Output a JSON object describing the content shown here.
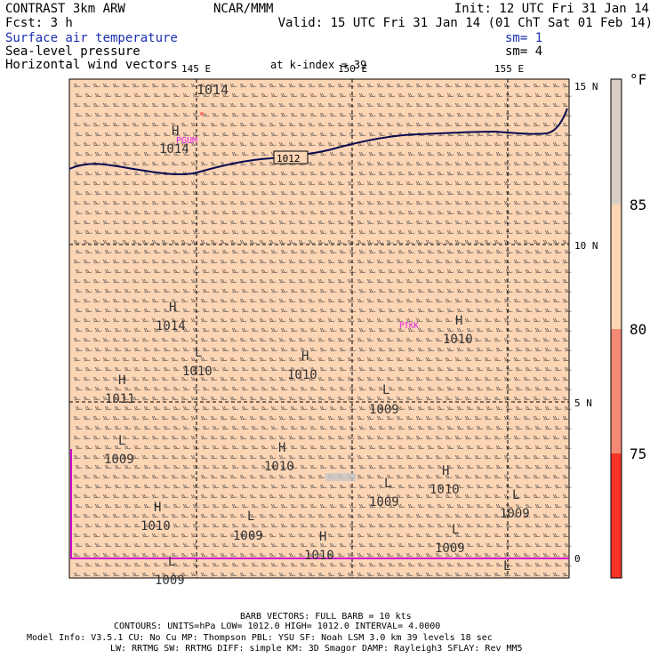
{
  "header": {
    "left": [
      {
        "text": "CONTRAST  3km ARW",
        "color": "#000000"
      },
      {
        "text": "Fcst:     3 h",
        "color": "#000000"
      },
      {
        "text": "Surface air temperature",
        "color": "#1d2fb0"
      },
      {
        "text": "Sea-level pressure",
        "color": "#000000"
      },
      {
        "text": "Horizontal wind vectors",
        "color": "#000000"
      }
    ],
    "center": "NCAR/MMM",
    "init": "Init: 12 UTC Fri 31 Jan 14",
    "valid": "Valid: 15 UTC Fri 31 Jan 14 (01 ChT Sat 01 Feb 14)",
    "sm1": "sm= 1",
    "sm2": "sm= 4",
    "kindex": "at k-index =  39"
  },
  "map": {
    "fill_color": "#fcd5b5",
    "lon_labels": [
      "145 E",
      "150 E",
      "155 E"
    ],
    "lat_labels": [
      "15 N",
      "10 N",
      "5 N",
      "0"
    ],
    "station_labels": [
      "PGUM",
      "PTKK"
    ],
    "contour_labels": [
      "1014",
      "1012"
    ],
    "pressure_centers": [
      {
        "type": "H",
        "value": "1014"
      },
      {
        "type": "H",
        "value": "1014"
      },
      {
        "type": "L",
        "value": "1010"
      },
      {
        "type": "H",
        "value": "1010"
      },
      {
        "type": "H",
        "value": "1011"
      },
      {
        "type": "L",
        "value": "1009"
      },
      {
        "type": "L",
        "value": "1009"
      },
      {
        "type": "H",
        "value": "1010"
      },
      {
        "type": "L",
        "value": "1009"
      },
      {
        "type": "H",
        "value": "1010"
      },
      {
        "type": "L",
        "value": "1009"
      },
      {
        "type": "H",
        "value": "1010"
      },
      {
        "type": "L",
        "value": "1009"
      },
      {
        "type": "H",
        "value": "1010"
      },
      {
        "type": "H",
        "value": "1010"
      },
      {
        "type": "L",
        "value": "1009"
      },
      {
        "type": "L",
        "value": "1009"
      },
      {
        "type": "L",
        "value": "1009"
      },
      {
        "type": "L",
        "value": "1009"
      },
      {
        "type": "H",
        "value": ""
      }
    ]
  },
  "colorbar": {
    "unit": "°F",
    "labels": [
      "85",
      "80",
      "75"
    ],
    "colors": [
      "#d8cec4",
      "#fcd5b5",
      "#f48a74",
      "#f43424"
    ]
  },
  "footer": {
    "barb": "BARB VECTORS:  FULL BARB = 10 kts",
    "contours": "CONTOURS:  UNITS=hPa  LOW=  1012.0        HIGH=  1012.0     INTERVAL=   4.0000",
    "model": "Model Info: V3.5.1    CU: No Cu     MP: Thompson     PBL: YSU       SF: Noah LSM     3.0 km   39 levels    18 sec",
    "physics": "LW: RRTMG     SW: RRTMG   DIFF: simple KM: 3D Smagor DAMP: Rayleigh3   SFLAY: Rev MM5"
  }
}
